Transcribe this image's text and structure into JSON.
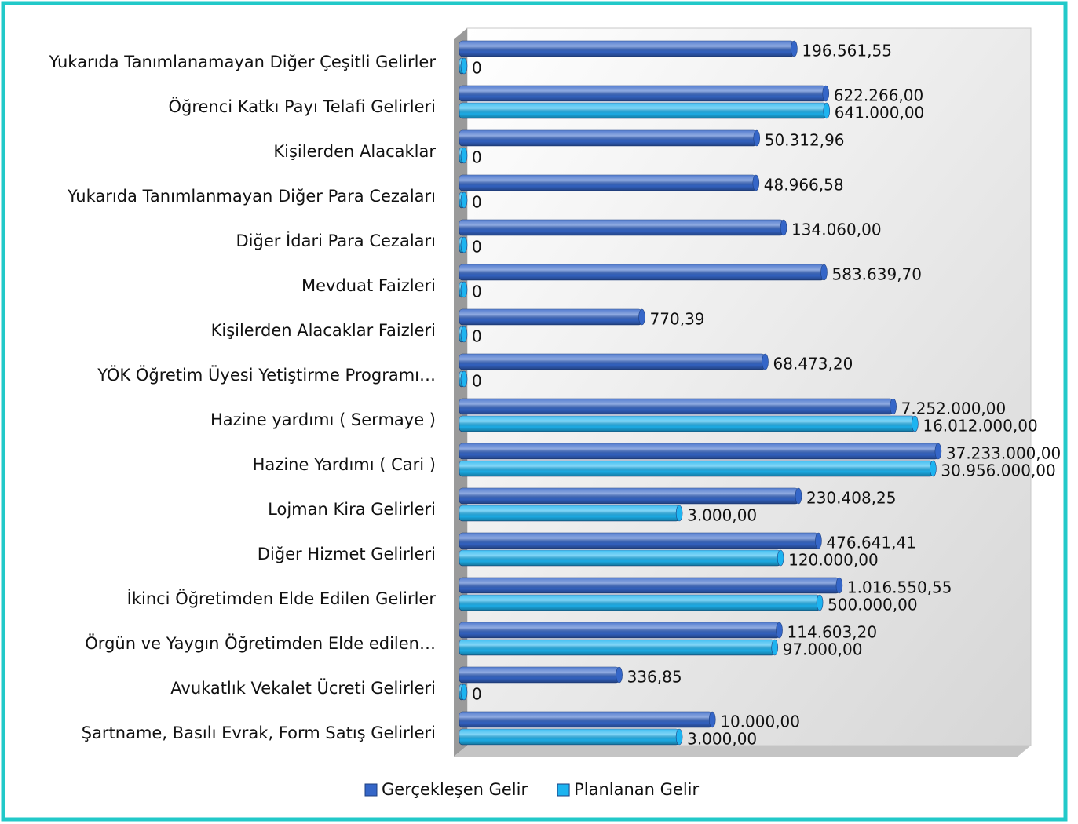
{
  "chart_data": {
    "type": "bar",
    "orientation": "horizontal",
    "xscale": "log",
    "xlim": [
      1,
      1000000000
    ],
    "categories": [
      "Yukarıda Tanımlanamayan Diğer Çeşitli Gelirler",
      "Öğrenci Katkı Payı Telafi Gelirleri",
      "Kişilerden Alacaklar",
      "Yukarıda Tanımlanmayan Diğer Para Cezaları",
      "Diğer İdari Para Cezaları",
      "Mevduat Faizleri",
      "Kişilerden Alacaklar Faizleri",
      "YÖK Öğretim Üyesi Yetiştirme Programı…",
      "Hazine yardımı ( Sermaye )",
      "Hazine Yardımı ( Cari )",
      "Lojman Kira Gelirleri",
      "Diğer Hizmet Gelirleri",
      "İkinci Öğretimden Elde Edilen Gelirler",
      "Örgün ve Yaygın Öğretimden Elde edilen…",
      "Avukatlık Vekalet Ücreti Gelirleri",
      "Şartname, Basılı Evrak,  Form Satış Gelirleri"
    ],
    "series": [
      {
        "name": "Gerçekleşen Gelir",
        "color": "#3566c8",
        "values": [
          196561.55,
          622266.0,
          50312.96,
          48966.58,
          134060.0,
          583639.7,
          770.39,
          68473.2,
          7252000.0,
          37233000.0,
          230408.25,
          476641.41,
          1016550.55,
          114603.2,
          336.85,
          10000.0
        ],
        "value_labels": [
          "196.561,55",
          "622.266,00",
          "50.312,96",
          "48.966,58",
          "134.060,00",
          "583.639,70",
          "770,39",
          "68.473,20",
          "7.252.000,00",
          "37.233.000,00",
          "230.408,25",
          "476.641,41",
          "1.016.550,55",
          "114.603,20",
          "336,85",
          "10.000,00"
        ]
      },
      {
        "name": "Planlanan Gelir",
        "color": "#1eb4f0",
        "values": [
          0,
          641000.0,
          0,
          0,
          0,
          0,
          0,
          0,
          16012000.0,
          30956000.0,
          3000.0,
          120000.0,
          500000.0,
          97000.0,
          0,
          3000.0
        ],
        "value_labels": [
          "0",
          "641.000,00",
          "0",
          "0",
          "0",
          "0",
          "0",
          "0",
          "16.012.000,00",
          "30.956.000,00",
          "3.000,00",
          "120.000,00",
          "500.000,00",
          "97.000,00",
          "0",
          "3.000,00"
        ]
      }
    ],
    "legend": "bottom"
  }
}
